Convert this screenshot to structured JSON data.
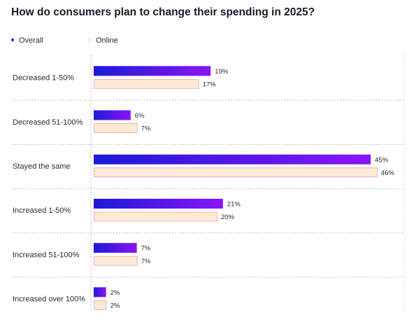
{
  "chart_data": {
    "type": "bar",
    "orientation": "horizontal",
    "title": "How do consumers plan to change their spending in 2025?",
    "categories": [
      "Decreased 1-50%",
      "Decreased 51-100%",
      "Stayed the same",
      "Increased 1-50%",
      "Increased 51-100%",
      "Increased over 100%"
    ],
    "series": [
      {
        "name": "Overall",
        "values": [
          19,
          6,
          45,
          21,
          7,
          2
        ],
        "color_start": "#1c1ad6",
        "color_end": "#8b14f5"
      },
      {
        "name": "Online",
        "values": [
          17,
          7,
          46,
          20,
          7,
          2
        ],
        "color": "#fde9d6",
        "stroke": "#e9a4a4"
      }
    ],
    "value_suffix": "%",
    "grid": true,
    "legend_position": "top-left"
  }
}
